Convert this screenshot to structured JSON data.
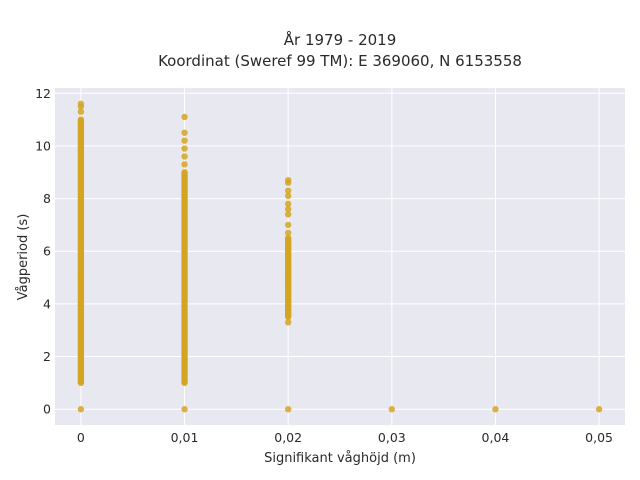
{
  "chart_data": {
    "type": "scatter",
    "title_line1": "År 1979 - 2019",
    "title_line2": "Koordinat (Sweref 99 TM): E 369060, N 6153558",
    "xlabel": "Signifikant våghöjd (m)",
    "ylabel": "Vågperiod (s)",
    "xlim": [
      -0.0025,
      0.0525
    ],
    "ylim": [
      -0.6,
      12.2
    ],
    "x_ticks": [
      0,
      0.01,
      0.02,
      0.03,
      0.04,
      0.05
    ],
    "x_tick_labels": [
      "0",
      "0,01",
      "0,02",
      "0,03",
      "0,04",
      "0,05"
    ],
    "y_ticks": [
      0,
      2,
      4,
      6,
      8,
      10,
      12
    ],
    "y_tick_labels": [
      "0",
      "2",
      "4",
      "6",
      "8",
      "10",
      "12"
    ],
    "grid": true,
    "marker_color": "#d4a521",
    "plot_background": "#e8e8f0",
    "columns": [
      {
        "x": 0,
        "zero_point": true,
        "dense_range": [
          1.0,
          11.0
        ],
        "outliers": [
          11.3,
          11.5,
          11.6
        ]
      },
      {
        "x": 0.01,
        "zero_point": true,
        "dense_range": [
          1.0,
          9.0
        ],
        "outliers": [
          9.3,
          9.6,
          9.9,
          10.2,
          10.5,
          11.1
        ]
      },
      {
        "x": 0.02,
        "zero_point": true,
        "dense_range": [
          3.5,
          6.5
        ],
        "outliers": [
          3.3,
          6.7,
          7.0,
          7.4,
          7.6,
          7.8,
          8.1,
          8.3,
          8.6,
          8.7
        ]
      },
      {
        "x": 0.03,
        "zero_point": true,
        "dense_range": null,
        "outliers": []
      },
      {
        "x": 0.04,
        "zero_point": true,
        "dense_range": null,
        "outliers": []
      },
      {
        "x": 0.05,
        "zero_point": true,
        "dense_range": null,
        "outliers": []
      }
    ]
  }
}
